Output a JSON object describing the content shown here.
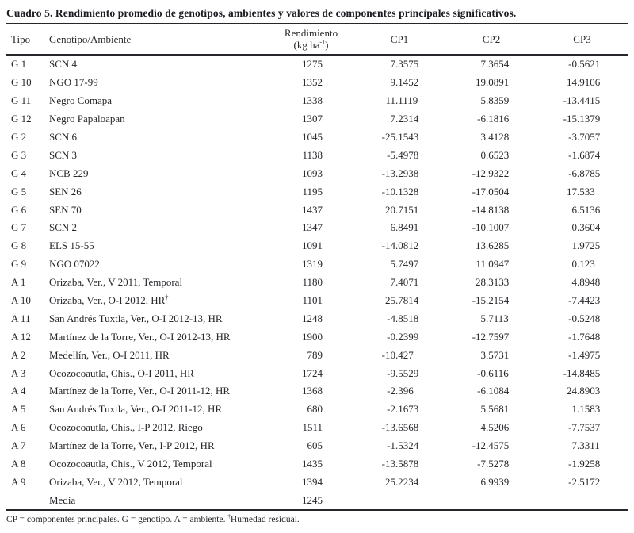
{
  "title": "Cuadro 5. Rendimiento promedio de genotipos, ambientes y valores de componentes principales significativos.",
  "table": {
    "headers": {
      "tipo": "Tipo",
      "genotipo": "Genotipo/Ambiente",
      "rendimiento_line1": "Rendimiento",
      "rendimiento_unit_pre": "(kg ha",
      "rendimiento_unit_sup": "-1",
      "rendimiento_unit_post": ")",
      "cp1": "CP1",
      "cp2": "CP2",
      "cp3": "CP3"
    },
    "rows": [
      {
        "tipo": "G 1",
        "name": "SCN 4",
        "rendimiento": "1275",
        "cp1": "7.3575",
        "cp2": "7.3654",
        "cp3": "-0.5621"
      },
      {
        "tipo": "G 10",
        "name": "NGO 17-99",
        "rendimiento": "1352",
        "cp1": "9.1452",
        "cp2": "19.0891",
        "cp3": "14.9106"
      },
      {
        "tipo": "G 11",
        "name": "Negro Comapa",
        "rendimiento": "1338",
        "cp1": "11.1119",
        "cp2": "5.8359",
        "cp3": "-13.4415"
      },
      {
        "tipo": "G 12",
        "name": "Negro Papaloapan",
        "rendimiento": "1307",
        "cp1": "7.2314",
        "cp2": "-6.1816",
        "cp3": "-15.1379"
      },
      {
        "tipo": "G 2",
        "name": "SCN 6",
        "rendimiento": "1045",
        "cp1": "-25.1543",
        "cp2": "3.4128",
        "cp3": "-3.7057"
      },
      {
        "tipo": "G 3",
        "name": "SCN 3",
        "rendimiento": "1138",
        "cp1": "-5.4978",
        "cp2": "0.6523",
        "cp3": "-1.6874"
      },
      {
        "tipo": "G 4",
        "name": "NCB 229",
        "rendimiento": "1093",
        "cp1": "-13.2938",
        "cp2": "-12.9322",
        "cp3": "-6.8785"
      },
      {
        "tipo": "G 5",
        "name": "SEN 26",
        "rendimiento": "1195",
        "cp1": "-10.1328",
        "cp2": "-17.0504",
        "cp3": "17.533"
      },
      {
        "tipo": "G 6",
        "name": "SEN 70",
        "rendimiento": "1437",
        "cp1": "20.7151",
        "cp2": "-14.8138",
        "cp3": "6.5136"
      },
      {
        "tipo": "G 7",
        "name": "SCN 2",
        "rendimiento": "1347",
        "cp1": "6.8491",
        "cp2": "-10.1007",
        "cp3": "0.3604"
      },
      {
        "tipo": "G 8",
        "name": "ELS 15-55",
        "rendimiento": "1091",
        "cp1": "-14.0812",
        "cp2": "13.6285",
        "cp3": "1.9725"
      },
      {
        "tipo": "G 9",
        "name": "NGO 07022",
        "rendimiento": "1319",
        "cp1": "5.7497",
        "cp2": "11.0947",
        "cp3": "0.123"
      },
      {
        "tipo": "A 1",
        "name": "Orizaba, Ver., V 2011, Temporal",
        "rendimiento": "1180",
        "cp1": "7.4071",
        "cp2": "28.3133",
        "cp3": "4.8948"
      },
      {
        "tipo": "A 10",
        "name": "Orizaba, Ver., O-I 2012, HR",
        "name_sup": "†",
        "rendimiento": "1101",
        "cp1": "25.7814",
        "cp2": "-15.2154",
        "cp3": "-7.4423"
      },
      {
        "tipo": "A 11",
        "name": "San Andrés Tuxtla, Ver., O-I 2012-13, HR",
        "rendimiento": "1248",
        "cp1": "-4.8518",
        "cp2": "5.7113",
        "cp3": "-0.5248"
      },
      {
        "tipo": "A 12",
        "name": "Martínez de la Torre, Ver., O-I 2012-13, HR",
        "rendimiento": "1900",
        "cp1": "-0.2399",
        "cp2": "-12.7597",
        "cp3": "-1.7648"
      },
      {
        "tipo": "A 2",
        "name": "Medellín, Ver., O-I 2011, HR",
        "rendimiento": "789",
        "cp1": "-10.427",
        "cp2": "3.5731",
        "cp3": "-1.4975"
      },
      {
        "tipo": "A 3",
        "name": "Ocozocoautla, Chis., O-I 2011, HR",
        "rendimiento": "1724",
        "cp1": "-9.5529",
        "cp2": "-0.6116",
        "cp3": "-14.8485"
      },
      {
        "tipo": "A 4",
        "name": "Martínez de la Torre, Ver., O-I 2011-12, HR",
        "rendimiento": "1368",
        "cp1": "-2.396",
        "cp2": "-6.1084",
        "cp3": "24.8903"
      },
      {
        "tipo": "A 5",
        "name": "San Andrés Tuxtla, Ver., O-I 2011-12, HR",
        "rendimiento": "680",
        "cp1": "-2.1673",
        "cp2": "5.5681",
        "cp3": "1.1583"
      },
      {
        "tipo": "A 6",
        "name": "Ocozocoautla, Chis., I-P 2012, Riego",
        "rendimiento": "1511",
        "cp1": "-13.6568",
        "cp2": "4.5206",
        "cp3": "-7.7537"
      },
      {
        "tipo": "A 7",
        "name": "Martínez de la Torre, Ver., I-P 2012, HR",
        "rendimiento": "605",
        "cp1": "-1.5324",
        "cp2": "-12.4575",
        "cp3": "7.3311"
      },
      {
        "tipo": "A 8",
        "name": "Ocozocoautla, Chis., V 2012, Temporal",
        "rendimiento": "1435",
        "cp1": "-13.5878",
        "cp2": "-7.5278",
        "cp3": "-1.9258"
      },
      {
        "tipo": "A 9",
        "name": "Orizaba, Ver., V 2012, Temporal",
        "rendimiento": "1394",
        "cp1": "25.2234",
        "cp2": "6.9939",
        "cp3": "-2.5172"
      },
      {
        "tipo": "",
        "name": "Media",
        "rendimiento": "1245",
        "cp1": "",
        "cp2": "",
        "cp3": ""
      }
    ]
  },
  "footnote": {
    "main": "CP = componentes principales. G = genotipo. A = ambiente. ",
    "sup": "†",
    "end": "Humedad residual."
  }
}
